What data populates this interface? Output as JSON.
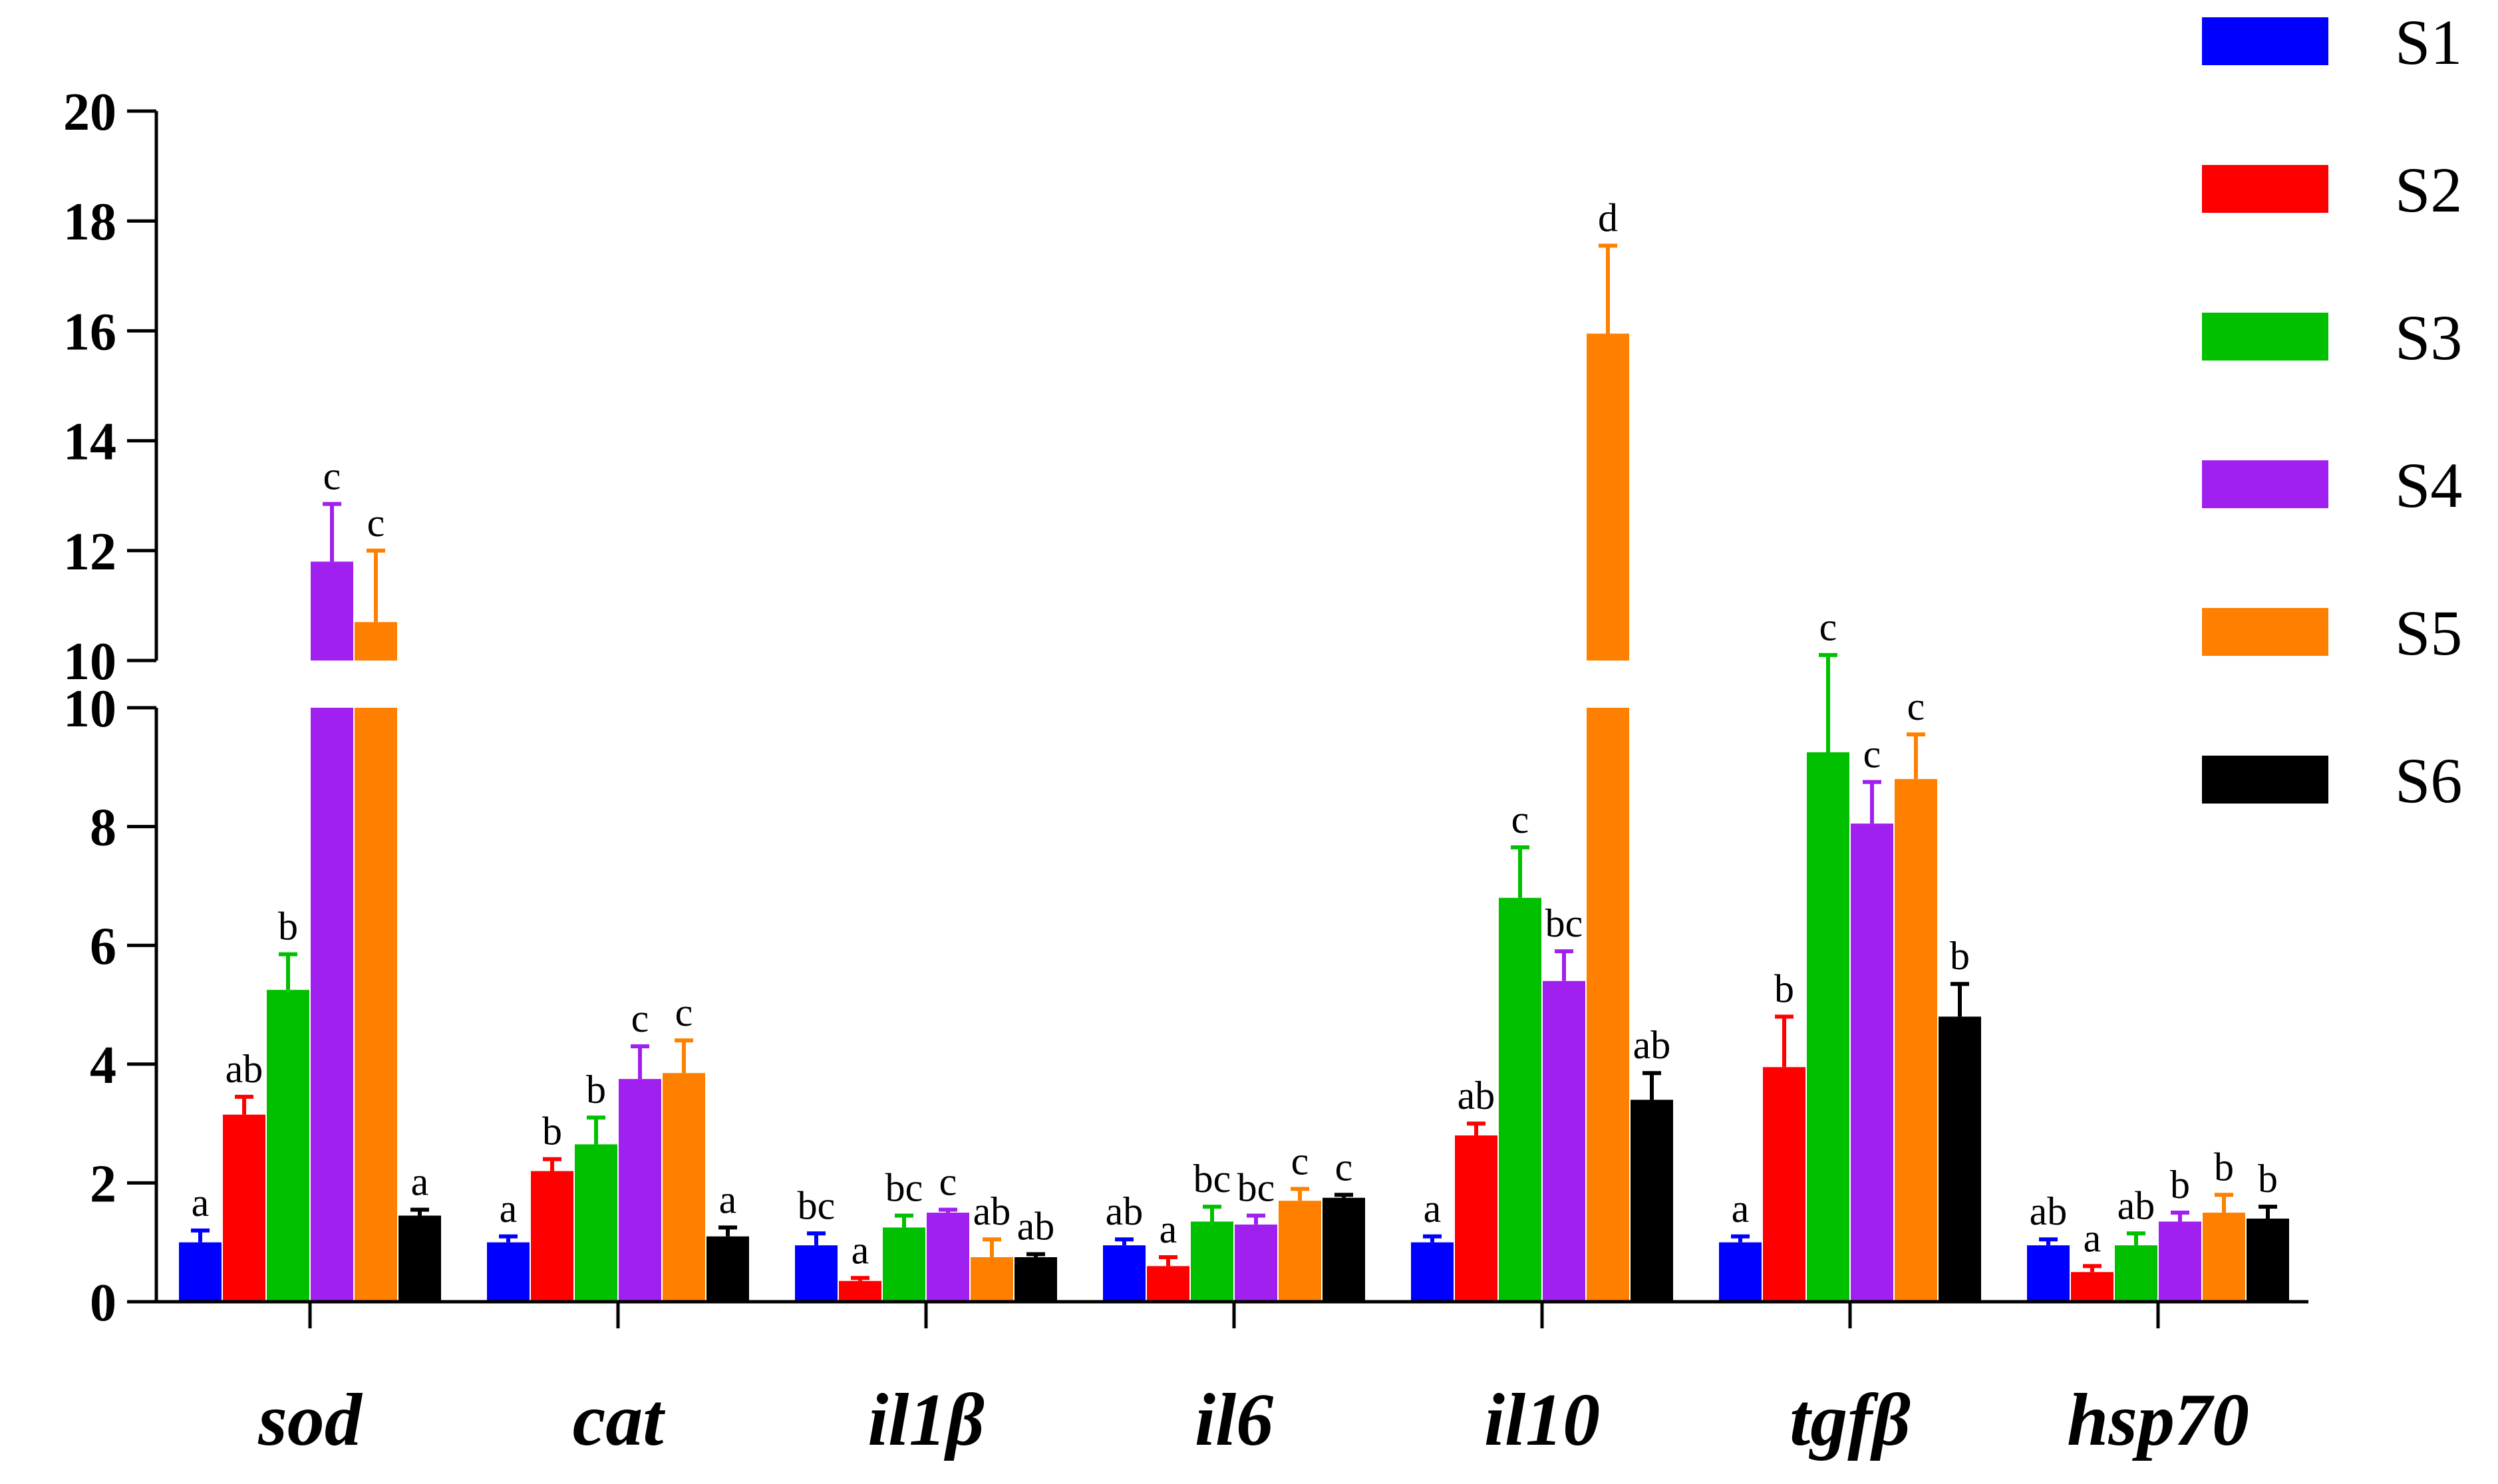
{
  "chart_data": {
    "type": "bar",
    "title": "",
    "xlabel": "",
    "ylabel": "",
    "categories": [
      "sod",
      "cat",
      "il1β",
      "il6",
      "il10",
      "tgfβ",
      "hsp70"
    ],
    "axis_break": {
      "lower_range": [
        0,
        10
      ],
      "upper_range": [
        10,
        20
      ]
    },
    "lower_ticks": [
      "0",
      "2",
      "4",
      "6",
      "8",
      "10"
    ],
    "upper_ticks": [
      "10",
      "12",
      "14",
      "16",
      "18",
      "20"
    ],
    "legend_position": "top-right",
    "series": [
      {
        "name": "S1",
        "color": "#0000FF",
        "values": [
          1.0,
          1.0,
          0.95,
          0.95,
          1.0,
          1.0,
          0.95
        ],
        "errors": [
          0.2,
          0.1,
          0.2,
          0.1,
          0.1,
          0.1,
          0.1
        ],
        "letters": [
          "a",
          "a",
          "bc",
          "ab",
          "a",
          "a",
          "ab"
        ]
      },
      {
        "name": "S2",
        "color": "#FF0000",
        "values": [
          3.15,
          2.2,
          0.35,
          0.6,
          2.8,
          3.95,
          0.5
        ],
        "errors": [
          0.3,
          0.2,
          0.05,
          0.15,
          0.2,
          0.85,
          0.1
        ],
        "letters": [
          "ab",
          "b",
          "a",
          "a",
          "ab",
          "b",
          "a"
        ]
      },
      {
        "name": "S3",
        "color": "#00C000",
        "values": [
          5.25,
          2.65,
          1.25,
          1.35,
          6.8,
          9.25,
          0.95
        ],
        "errors": [
          0.6,
          0.45,
          0.2,
          0.25,
          0.85,
          0.85,
          0.2
        ],
        "letters": [
          "b",
          "b",
          "bc",
          "bc",
          "c",
          "c",
          "ab"
        ]
      },
      {
        "name": "S4",
        "color": "#A020F0",
        "values": [
          11.8,
          3.75,
          1.5,
          1.3,
          5.4,
          8.05,
          1.35
        ],
        "errors": [
          1.05,
          0.55,
          0.05,
          0.15,
          0.5,
          0.7,
          0.15
        ],
        "letters": [
          "c",
          "c",
          "c",
          "bc",
          "bc",
          "c",
          "b"
        ]
      },
      {
        "name": "S5",
        "color": "#FF8000",
        "values": [
          10.7,
          3.85,
          0.75,
          1.7,
          15.95,
          8.8,
          1.5
        ],
        "errors": [
          1.3,
          0.55,
          0.3,
          0.2,
          1.6,
          0.75,
          0.3
        ],
        "letters": [
          "c",
          "c",
          "ab",
          "c",
          "d",
          "c",
          "b"
        ]
      },
      {
        "name": "S6",
        "color": "#000000",
        "values": [
          1.45,
          1.1,
          0.75,
          1.75,
          3.4,
          4.8,
          1.4
        ],
        "errors": [
          0.1,
          0.15,
          0.05,
          0.05,
          0.45,
          0.55,
          0.2
        ],
        "letters": [
          "a",
          "a",
          "ab",
          "c",
          "ab",
          "b",
          "b"
        ]
      }
    ]
  }
}
